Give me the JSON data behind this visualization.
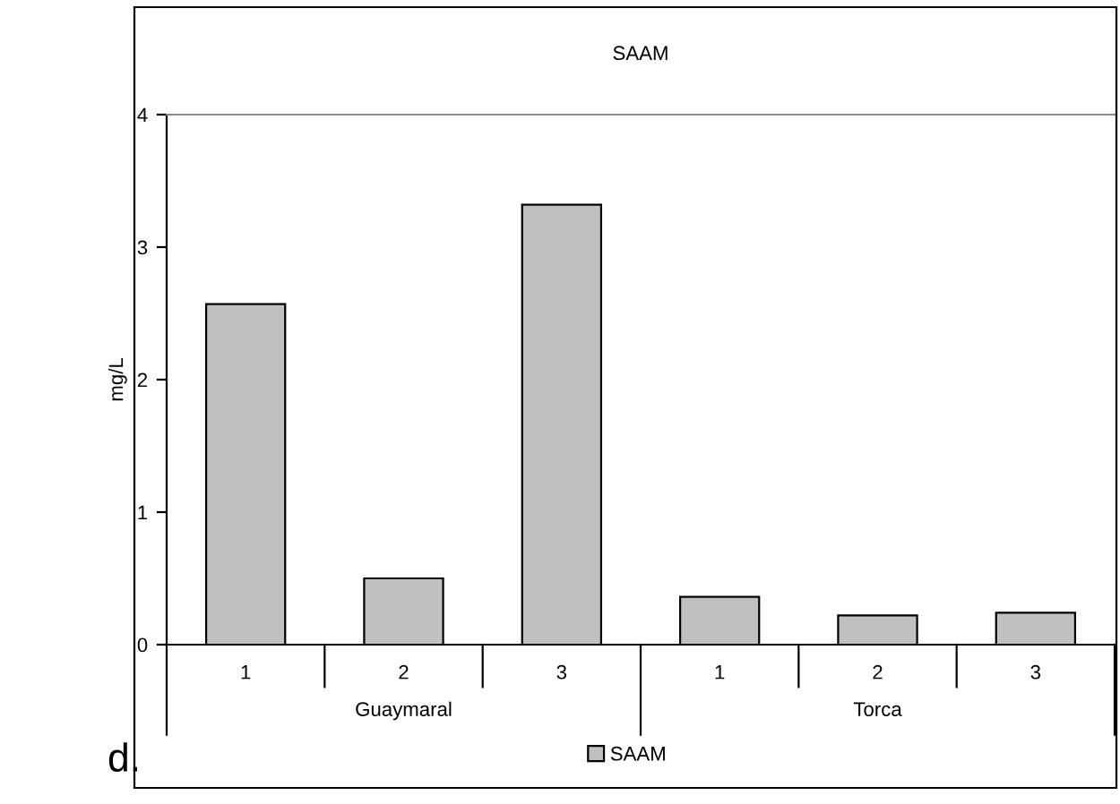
{
  "chart_data": {
    "type": "bar",
    "title": "SAAM",
    "ylabel": "mg/L",
    "categories": [
      "1",
      "2",
      "3",
      "1",
      "2",
      "3"
    ],
    "series": [
      {
        "name": "SAAM",
        "color": "#c0c0c0",
        "values": [
          2.57,
          0.5,
          3.32,
          0.36,
          0.22,
          0.24
        ]
      }
    ],
    "ylim": [
      0,
      4
    ],
    "yticks": [
      0,
      1,
      2,
      3,
      4
    ],
    "grid": false,
    "legend": "bottom",
    "annotations": [
      "d.",
      "Guaymaral",
      "Torca"
    ]
  }
}
